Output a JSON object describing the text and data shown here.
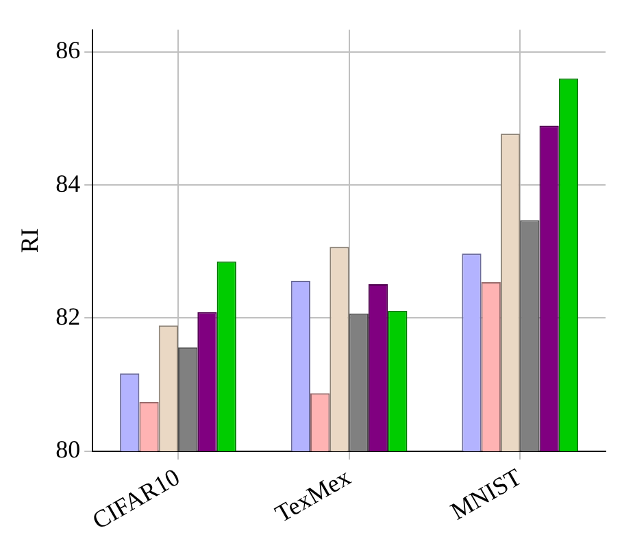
{
  "chart_data": {
    "type": "bar",
    "ylabel": "RI",
    "categories": [
      "CIFAR10",
      "TexMex",
      "MNIST"
    ],
    "series": [
      {
        "color": "#b3b3ff",
        "values": [
          81.17,
          82.56,
          82.97
        ]
      },
      {
        "color": "#ffb3b3",
        "values": [
          80.74,
          80.87,
          82.54
        ]
      },
      {
        "color": "#ead8c4",
        "values": [
          81.89,
          83.07,
          84.77
        ]
      },
      {
        "color": "#808080",
        "values": [
          81.56,
          82.07,
          83.47
        ]
      },
      {
        "color": "#800080",
        "values": [
          82.09,
          82.51,
          84.89
        ]
      },
      {
        "color": "#00cc00",
        "values": [
          82.85,
          82.11,
          85.6
        ]
      }
    ],
    "ylim": [
      80,
      86.33
    ],
    "yticks": [
      80,
      82,
      84,
      86
    ],
    "grid": true,
    "legend": false
  }
}
